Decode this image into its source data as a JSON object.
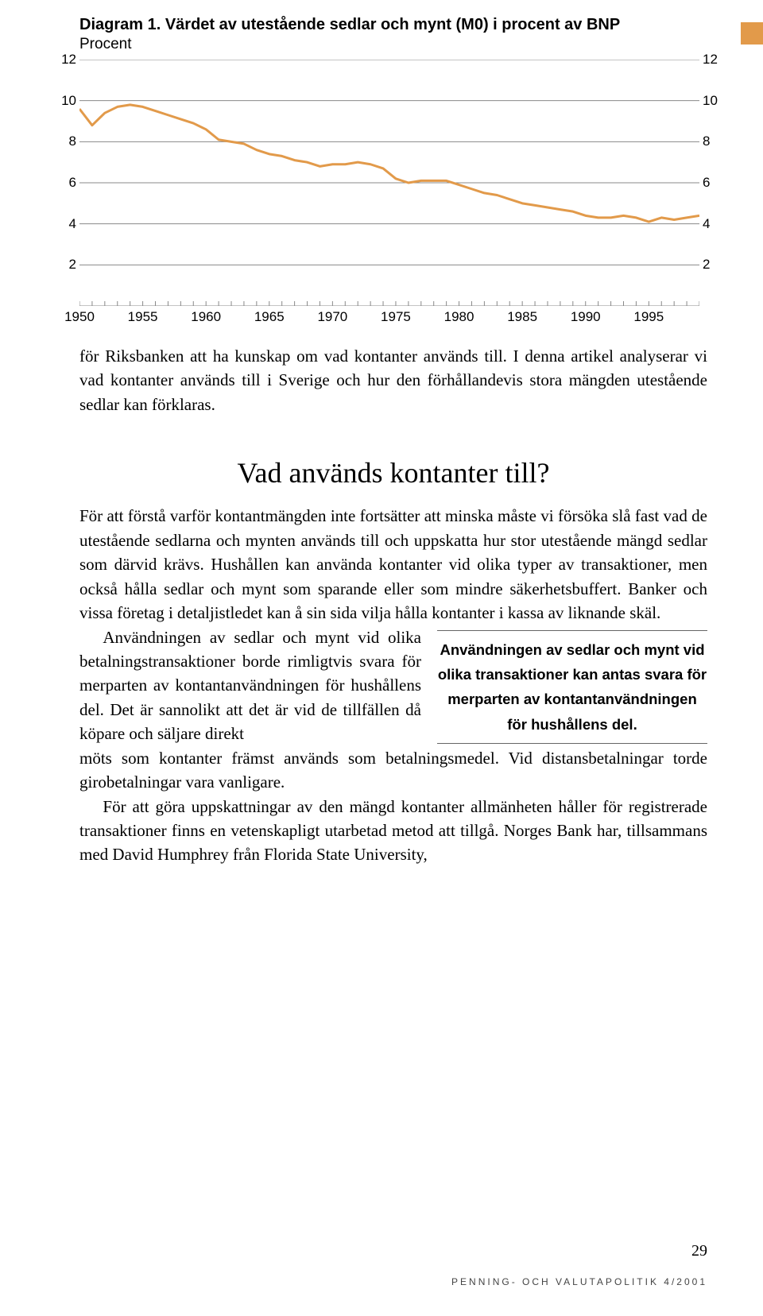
{
  "corner_color": "#e29a4a",
  "diagram": {
    "title": "Diagram 1. Värdet av utestående sedlar och mynt (M0) i procent av BNP",
    "subtitle": "Procent",
    "chart": {
      "type": "line",
      "x_start": 1950,
      "x_end": 1999,
      "x_tick_labels": [
        1950,
        1955,
        1960,
        1965,
        1970,
        1975,
        1980,
        1985,
        1990,
        1995
      ],
      "y_min": 0,
      "y_max": 12,
      "y_ticks": [
        2,
        4,
        6,
        8,
        10,
        12
      ],
      "grid_color": "#888888",
      "line_color": "#e29a4a",
      "line_width": 3,
      "background": "#ffffff",
      "series": [
        {
          "x": 1950,
          "y": 9.6
        },
        {
          "x": 1951,
          "y": 8.8
        },
        {
          "x": 1952,
          "y": 9.4
        },
        {
          "x": 1953,
          "y": 9.7
        },
        {
          "x": 1954,
          "y": 9.8
        },
        {
          "x": 1955,
          "y": 9.7
        },
        {
          "x": 1956,
          "y": 9.5
        },
        {
          "x": 1957,
          "y": 9.3
        },
        {
          "x": 1958,
          "y": 9.1
        },
        {
          "x": 1959,
          "y": 8.9
        },
        {
          "x": 1960,
          "y": 8.6
        },
        {
          "x": 1961,
          "y": 8.1
        },
        {
          "x": 1962,
          "y": 8.0
        },
        {
          "x": 1963,
          "y": 7.9
        },
        {
          "x": 1964,
          "y": 7.6
        },
        {
          "x": 1965,
          "y": 7.4
        },
        {
          "x": 1966,
          "y": 7.3
        },
        {
          "x": 1967,
          "y": 7.1
        },
        {
          "x": 1968,
          "y": 7.0
        },
        {
          "x": 1969,
          "y": 6.8
        },
        {
          "x": 1970,
          "y": 6.9
        },
        {
          "x": 1971,
          "y": 6.9
        },
        {
          "x": 1972,
          "y": 7.0
        },
        {
          "x": 1973,
          "y": 6.9
        },
        {
          "x": 1974,
          "y": 6.7
        },
        {
          "x": 1975,
          "y": 6.2
        },
        {
          "x": 1976,
          "y": 6.0
        },
        {
          "x": 1977,
          "y": 6.1
        },
        {
          "x": 1978,
          "y": 6.1
        },
        {
          "x": 1979,
          "y": 6.1
        },
        {
          "x": 1980,
          "y": 5.9
        },
        {
          "x": 1981,
          "y": 5.7
        },
        {
          "x": 1982,
          "y": 5.5
        },
        {
          "x": 1983,
          "y": 5.4
        },
        {
          "x": 1984,
          "y": 5.2
        },
        {
          "x": 1985,
          "y": 5.0
        },
        {
          "x": 1986,
          "y": 4.9
        },
        {
          "x": 1987,
          "y": 4.8
        },
        {
          "x": 1988,
          "y": 4.7
        },
        {
          "x": 1989,
          "y": 4.6
        },
        {
          "x": 1990,
          "y": 4.4
        },
        {
          "x": 1991,
          "y": 4.3
        },
        {
          "x": 1992,
          "y": 4.3
        },
        {
          "x": 1993,
          "y": 4.4
        },
        {
          "x": 1994,
          "y": 4.3
        },
        {
          "x": 1995,
          "y": 4.1
        },
        {
          "x": 1996,
          "y": 4.3
        },
        {
          "x": 1997,
          "y": 4.2
        },
        {
          "x": 1998,
          "y": 4.3
        },
        {
          "x": 1999,
          "y": 4.4
        }
      ]
    }
  },
  "intro_text": "för Riksbanken att ha kunskap om vad kontanter används till. I denna artikel analyserar vi vad kontanter används till i Sverige och hur den förhållandevis stora mängden utestående sedlar kan förklaras.",
  "heading": "Vad används kontanter till?",
  "para1": "För att förstå varför kontantmängden inte fortsätter att minska måste vi försöka slå fast vad de utestående sedlarna och mynten används till och uppskatta hur stor utestående mängd sedlar som därvid krävs. Hushållen kan använda kontanter vid olika typer av transaktioner, men också hålla sedlar och mynt som sparande eller som mindre säkerhetsbuffert. Banker och vissa företag i detaljistledet kan å sin sida vilja hålla kontanter i kassa av liknande skäl.",
  "para2_left": "Användningen av sedlar och mynt vid olika betalningstransaktioner borde rimligtvis svara för merparten av kontantanvändningen för hushållens del. Det är sannolikt att det är vid de tillfällen då köpare och säljare direkt",
  "pullquote": "Användningen av sedlar och mynt vid olika transaktioner kan antas svara för merparten av kontantanvändningen för hushållens del.",
  "para2_after": "möts som kontanter främst används som betalningsmedel. Vid distansbetalningar torde girobetalningar vara vanligare.",
  "para3": "För att göra uppskattningar av den mängd kontanter allmänheten håller för registrerade transaktioner finns en vetenskapligt utarbetad metod att tillgå. Norges Bank har, tillsammans med David Humphrey från Florida State University,",
  "page_number": "29",
  "footer": "PENNING- OCH VALUTAPOLITIK 4/2001"
}
